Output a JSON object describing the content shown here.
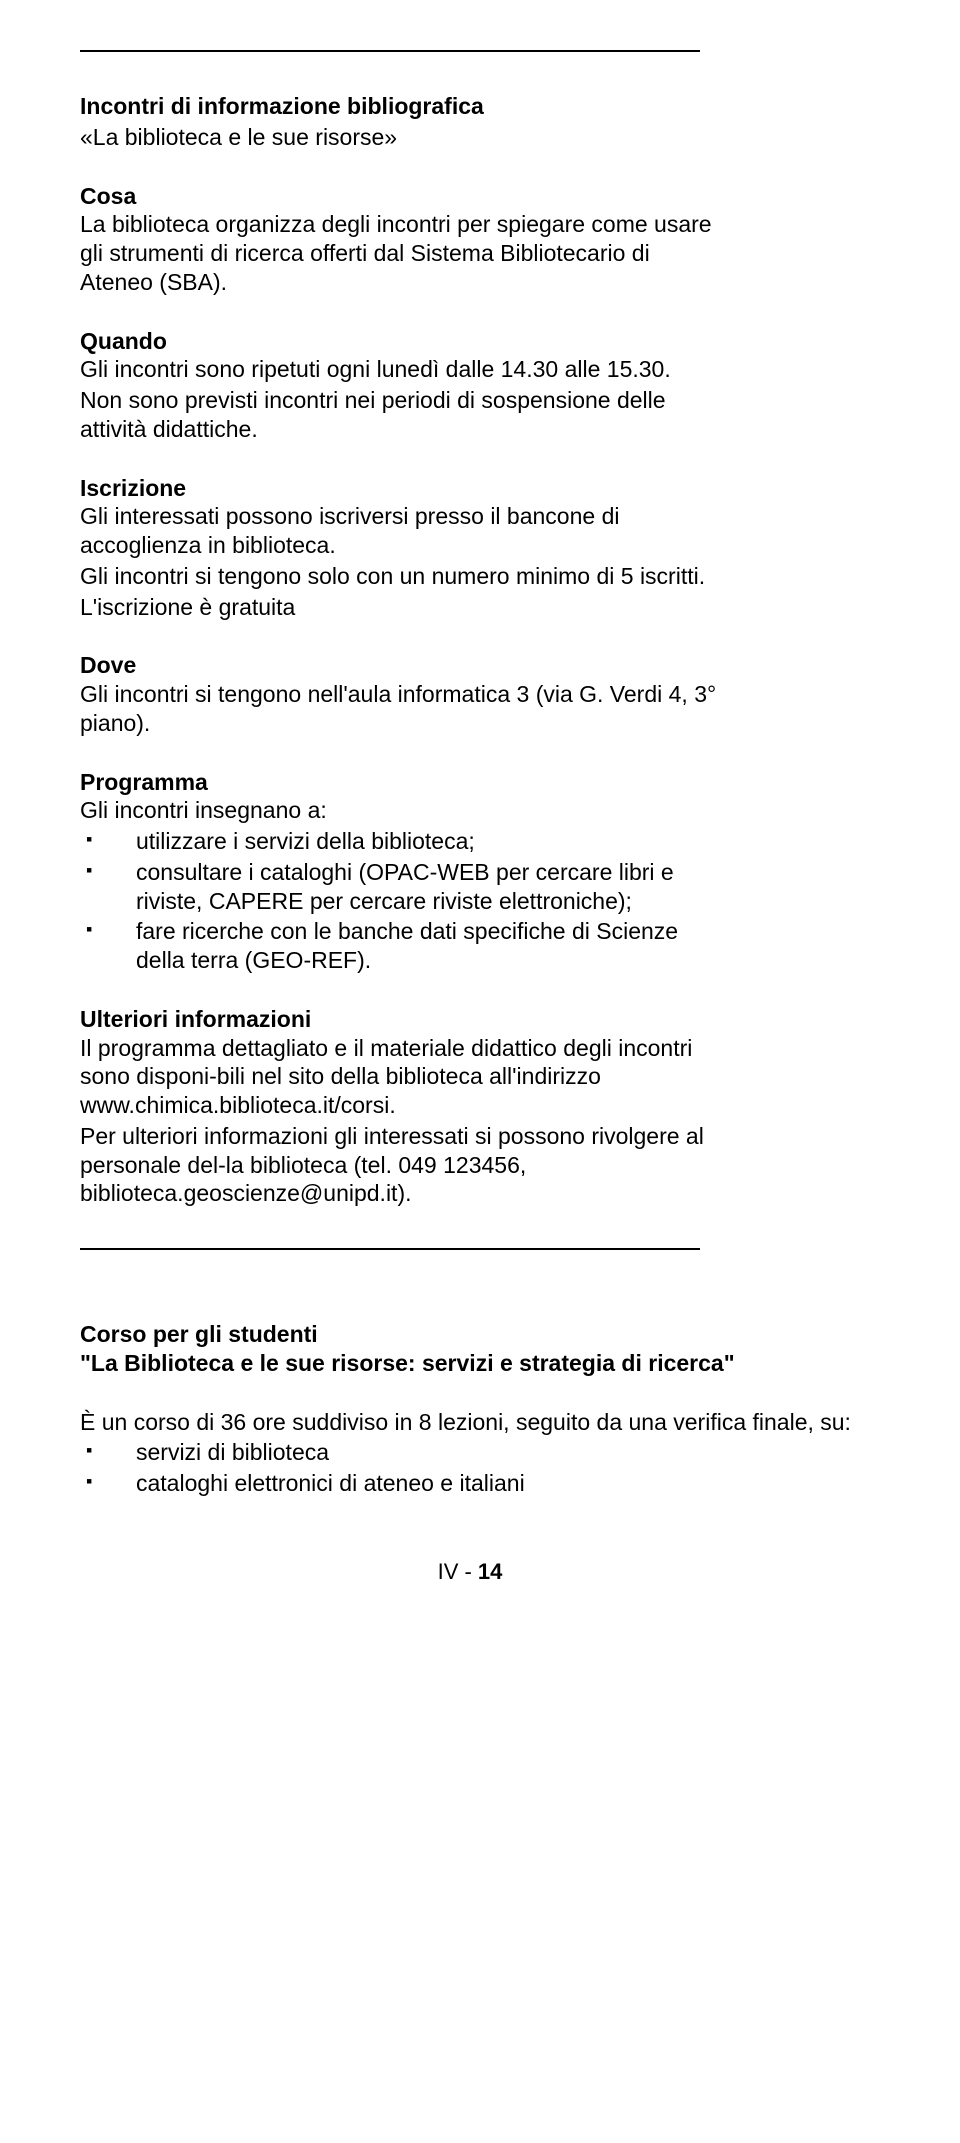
{
  "header": {
    "title": "Incontri di informazione bibliografica",
    "subtitle": "«La biblioteca e le sue risorse»"
  },
  "sections": {
    "cosa": {
      "heading": "Cosa",
      "text": "La biblioteca organizza degli incontri per spiegare come usare gli strumenti di ricerca offerti dal Sistema Bibliotecario di Ateneo (SBA)."
    },
    "quando": {
      "heading": "Quando",
      "text1": "Gli incontri sono ripetuti ogni lunedì dalle 14.30 alle 15.30.",
      "text2": "Non sono previsti incontri nei periodi di sospensione delle attività didattiche."
    },
    "iscrizione": {
      "heading": "Iscrizione",
      "text1": "Gli interessati possono iscriversi presso il bancone di accoglienza in biblioteca.",
      "text2": "Gli incontri si tengono solo con un numero minimo di 5 iscritti.",
      "text3": "L'iscrizione è gratuita"
    },
    "dove": {
      "heading": "Dove",
      "text": "Gli incontri si tengono nell'aula informatica 3 (via G. Verdi 4, 3° piano)."
    },
    "programma": {
      "heading": "Programma",
      "intro": "Gli incontri insegnano a:",
      "items": [
        "utilizzare i servizi della biblioteca;",
        "consultare i cataloghi (OPAC-WEB per cercare libri e riviste, CAPERE per cercare riviste elettroniche);",
        "fare ricerche con le banche dati specifiche di Scienze della terra (GEO-REF)."
      ]
    },
    "ulteriori": {
      "heading": "Ulteriori informazioni",
      "text1": "Il programma dettagliato e il materiale didattico degli incontri sono disponi-bili nel sito della biblioteca all'indirizzo www.chimica.biblioteca.it/corsi.",
      "text2": "Per ulteriori informazioni gli interessati si possono rivolgere al personale del-la biblioteca (tel. 049 123456, biblioteca.geoscienze@unipd.it)."
    }
  },
  "course": {
    "title": "Corso per gli studenti",
    "subtitle": "\"La Biblioteca e le sue risorse: servizi e strategia di ricerca\"",
    "intro": "È un corso di 36 ore suddiviso in 8 lezioni, seguito da una verifica finale, su:",
    "items": [
      "servizi di biblioteca",
      "cataloghi elettronici di ateneo e italiani"
    ]
  },
  "footer": {
    "prefix": "IV - ",
    "page": "14"
  }
}
